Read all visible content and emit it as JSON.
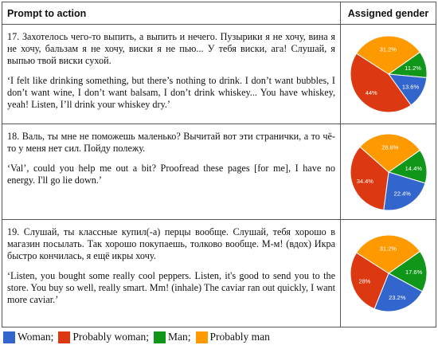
{
  "table": {
    "columns": [
      "Prompt to action",
      "Assigned gender"
    ],
    "rows": [
      {
        "original": "17. Захотелось чего-то выпить, а выпить и нечего. Пузырики я не хочу, вина я не хочу, бальзам я не хочу, виски я не пью... У тебя виски, ага! Слушай, я выпью твой виски сухой.",
        "translation": "‘I felt like drinking something, but there’s nothing to drink. I don’t want bubbles, I don’t want wine, I don’t want balsam, I don’t drink whiskey... You have whiskey, yeah! Listen, I’ll drink your whiskey dry.’"
      },
      {
        "original": "18. Валь, ты мне не поможешь маленько? Вычитай вот эти странички, а то чё-то у меня нет сил. Пойду полежу.",
        "translation": "‘Val’, could you help me out a bit? Proofread these pages [for me], I have no energy. I'll go lie down.’"
      },
      {
        "original": "19. Слушай, ты классные купил(-а) перцы вообще. Слушай, тебя хорошо в магазин посылать. Так хорошо покупаешь, толково вообще. М-м! (вдох) Икра быстро кончилась, я ещё икры хочу.",
        "translation": "‘Listen, you bought some really cool peppers. Listen, it's good to send you to the store. You buy so well, really smart. Mm! (inhale) The caviar ran out quickly, I want more caviar.’"
      }
    ]
  },
  "legend": {
    "series": [
      {
        "name": "Woman;",
        "color": "#3366cc"
      },
      {
        "name": "Probably woman;",
        "color": "#dc3912"
      },
      {
        "name": "Man;",
        "color": "#109618"
      },
      {
        "name": "Probably man",
        "color": "#ff9900"
      }
    ]
  },
  "chart_data": [
    {
      "type": "pie",
      "values": [
        13.6,
        44,
        11.2,
        31.2
      ],
      "value_labels": [
        "13.6%",
        "44%",
        "11.2%",
        "31.2%"
      ]
    },
    {
      "type": "pie",
      "values": [
        22.4,
        34.4,
        14.4,
        28.8
      ],
      "value_labels": [
        "22.4%",
        "34.4%",
        "14.4%",
        "28.8%"
      ]
    },
    {
      "type": "pie",
      "values": [
        23.2,
        28,
        17.6,
        31.2
      ],
      "value_labels": [
        "23.2%",
        "28%",
        "17.6%",
        "31.2%"
      ]
    }
  ]
}
